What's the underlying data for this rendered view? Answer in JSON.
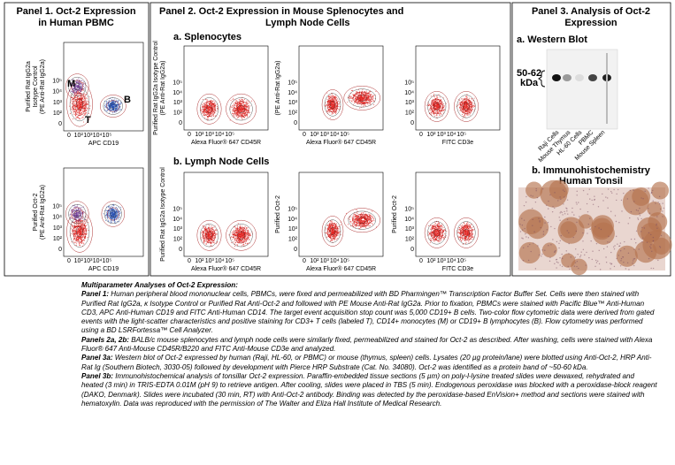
{
  "panels": [
    {
      "title": [
        "Panel 1. Oct-2 Expression",
        "in Human PBMC"
      ],
      "plots": [
        {
          "y_label": [
            "Purified Rat IgG2a",
            "Isotype Control",
            "(PE Anti-Rat IgG2a)"
          ],
          "x_label": "APC  CD19",
          "annotations": [
            "M",
            "T",
            "B"
          ]
        },
        {
          "y_label": [
            "Purified Oct-2",
            "(PE Anti-Rat IgG2a)"
          ],
          "x_label": "APC  CD19"
        }
      ]
    },
    {
      "title": [
        "Panel 2.  Oct-2 Expression in Mouse Splenocytes and",
        "Lymph Node Cells"
      ],
      "sections": [
        "a. Splenocytes",
        "b. Lymph Node Cells"
      ],
      "plots": [
        {
          "y_label": [
            "Purified Rat IgG2a Isotype Control",
            "(PE Anti-Rat IgG2a)"
          ],
          "x_label": "Alexa Fluor® 647 CD45R"
        },
        {
          "y_label": [
            "(PE Anti-Rat IgG2a)"
          ],
          "x_label": "Alexa Fluor® 647 CD45R"
        },
        {
          "y_label": [],
          "x_label": "FITC  CD3e"
        },
        {
          "y_label": [
            "Purified Rat IgG2a Isotype Control"
          ],
          "x_label": "Alexa Fluor® 647 CD45R"
        },
        {
          "y_label": [
            "Purified Oct-2"
          ],
          "x_label": "Alexa Fluor® 647 CD45R"
        },
        {
          "y_label": [
            "Purified Oct-2"
          ],
          "x_label": "FITC  CD3e"
        }
      ]
    },
    {
      "title": [
        "Panel 3. Analysis of Oct-2",
        "Expression"
      ],
      "western_blot": {
        "heading": "a. Western Blot",
        "size_label": [
          "50-62",
          "kDa"
        ],
        "lanes": [
          "Raji Cells",
          "Mouse Thymus",
          "HL-60 Cells",
          "PBMC",
          "Mouse Spleen"
        ]
      },
      "ihc": {
        "heading": [
          "b. Immunohistochemistry",
          "Human Tonsil"
        ]
      }
    }
  ],
  "axis_ticks": [
    "0",
    "10²",
    "10³",
    "10⁴",
    "10⁵"
  ],
  "caption": {
    "heading": "Multiparameter Analyses of Oct-2 Expression:",
    "paragraphs": [
      {
        "label": "Panel 1:",
        "text": "Human peripheral blood mononuclear cells, PBMCs, were fixed and permeabilized with BD Pharmingen™ Transcription Factor Buffer Set. Cells were then stained with Purified Rat IgG2a, κ Isotype Control or Purified Rat Anti-Oct-2 and followed with PE Mouse Anti-Rat IgG2a. Prior to fixation, PBMCs were stained with Pacific Blue™ Anti-Human CD3, APC Anti-Human CD19 and FITC Anti-Human CD14. The target event acquisition stop count was 5,000 CD19+ B cells. Two-color flow cytometric data were derived from gated events with the light-scatter characteristics and positive staining for CD3+ T cells (labeled T), CD14+ monocytes (M) or CD19+ B lymphocytes (B). Flow cytometry was performed using a BD LSRFortessa™ Cell Analyzer."
      },
      {
        "label": "Panels 2a, 2b:",
        "text": "BALB/c mouse splenocytes  and lymph node cells were similarly fixed, permeabilized and stained for Oct-2 as described. After washing, cells were stained with Alexa Fluor® 647 Anti-Mouse CD45R/B220 and FITC Anti-Mouse CD3e and analyzed."
      },
      {
        "label": "Panel 3a:",
        "text": "Western blot of Oct-2 expressed by human (Raji, HL-60, or PBMC) or mouse (thymus, spleen) cells. Lysates (20 µg protein/lane) were blotted using Anti-Oct-2, HRP Anti-Rat Ig (Southern Biotech, 3030-05) followed by development with Pierce HRP Substrate (Cat. No. 34080). Oct-2 was identified as a protein band of ~50-60 kDa."
      },
      {
        "label": "Panel 3b:",
        "text": "Immunohistochemical analysis of tonsillar Oct-2 expression. Paraffin-embedded tissue sections (5 µm) on poly-l-lysine treated slides were dewaxed, rehydrated and heated (3 min) in TRIS-EDTA 0.01M (pH 9) to retrieve antigen. After cooling, slides were placed in TBS (5 min). Endogenous peroxidase was blocked with a peroxidase-block reagent (DAKO, Denmark). Slides were incubated (30 min, RT) with Anti-Oct-2 antibody. Binding was detected by the peroxidase-based EnVision+ method and sections were stained with hematoxylin. Data was reproduced with the permission of The Walter and Eliza Hall Institute of Medical Research."
      }
    ]
  }
}
